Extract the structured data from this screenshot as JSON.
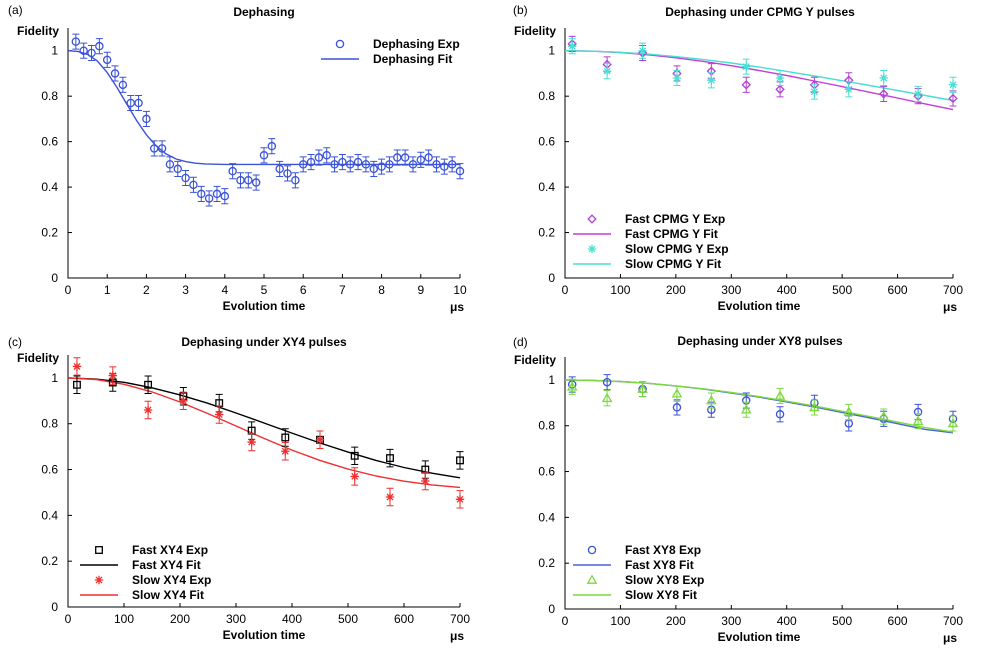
{
  "chart_data": [
    {
      "type": "scatter",
      "panel_label": "(a)",
      "title": "Dephasing",
      "xlabel": "Evolution time",
      "xunit": "μs",
      "ylabel": "Fidelity",
      "xlim": [
        0,
        10
      ],
      "ylim": [
        0,
        1.1
      ],
      "xticks": [
        0,
        1,
        2,
        3,
        4,
        5,
        6,
        7,
        8,
        9,
        10
      ],
      "yticks": [
        0,
        0.2,
        0.4,
        0.6,
        0.8,
        1
      ],
      "legend_position": "top-right",
      "series": [
        {
          "name": "Dephasing Exp",
          "kind": "exp",
          "marker": "circle",
          "color": "#3a52d6",
          "x": [
            0.2,
            0.4,
            0.6,
            0.8,
            1.0,
            1.2,
            1.4,
            1.6,
            1.8,
            2.0,
            2.2,
            2.4,
            2.6,
            2.8,
            3.0,
            3.2,
            3.4,
            3.6,
            3.8,
            4.0,
            4.2,
            4.4,
            4.6,
            4.8,
            5.0,
            5.2,
            5.4,
            5.6,
            5.8,
            6.0,
            6.2,
            6.4,
            6.6,
            6.8,
            7.0,
            7.2,
            7.4,
            7.6,
            7.8,
            8.0,
            8.2,
            8.4,
            8.6,
            8.8,
            9.0,
            9.2,
            9.4,
            9.6,
            9.8,
            10.0
          ],
          "y": [
            1.04,
            1.0,
            0.99,
            1.02,
            0.96,
            0.9,
            0.85,
            0.77,
            0.77,
            0.7,
            0.57,
            0.57,
            0.5,
            0.48,
            0.44,
            0.41,
            0.37,
            0.35,
            0.37,
            0.36,
            0.47,
            0.43,
            0.43,
            0.42,
            0.54,
            0.58,
            0.48,
            0.46,
            0.43,
            0.5,
            0.51,
            0.53,
            0.54,
            0.5,
            0.51,
            0.5,
            0.51,
            0.5,
            0.48,
            0.49,
            0.5,
            0.53,
            0.53,
            0.5,
            0.52,
            0.53,
            0.5,
            0.49,
            0.5,
            0.47
          ],
          "error": 0.02
        },
        {
          "name": "Dephasing Fit",
          "kind": "fit",
          "color": "#3a52d6",
          "x": [
            0,
            0.25,
            0.5,
            0.75,
            1,
            1.25,
            1.5,
            1.75,
            2,
            2.25,
            2.5,
            2.75,
            3,
            3.25,
            3.5,
            4,
            4.5,
            5,
            6,
            7,
            8,
            9,
            10
          ],
          "y": [
            1.0,
            0.997,
            0.984,
            0.955,
            0.904,
            0.838,
            0.765,
            0.693,
            0.63,
            0.581,
            0.546,
            0.524,
            0.512,
            0.505,
            0.502,
            0.5,
            0.5,
            0.5,
            0.5,
            0.5,
            0.5,
            0.5,
            0.5
          ]
        }
      ]
    },
    {
      "type": "scatter",
      "panel_label": "(b)",
      "title": "Dephasing under CPMG Y pulses",
      "xlabel": "Evolution time",
      "xunit": "μs",
      "ylabel": "Fidelity",
      "xlim": [
        0,
        700
      ],
      "ylim": [
        0,
        1.1
      ],
      "xticks": [
        0,
        100,
        200,
        300,
        400,
        500,
        600,
        700
      ],
      "yticks": [
        0,
        0.2,
        0.4,
        0.6,
        0.8,
        1
      ],
      "legend_position": "bottom-left",
      "series": [
        {
          "name": "Fast CPMG Y Exp",
          "kind": "exp",
          "marker": "diamond",
          "color": "#b13fd6",
          "x": [
            13,
            76,
            140,
            202,
            264,
            327,
            388,
            450,
            512,
            575,
            637,
            700
          ],
          "y": [
            1.03,
            0.94,
            0.99,
            0.9,
            0.91,
            0.85,
            0.83,
            0.85,
            0.87,
            0.81,
            0.8,
            0.79
          ],
          "error": 0.02
        },
        {
          "name": "Fast CPMG Y Fit",
          "kind": "fit",
          "color": "#c33fd9",
          "x": [
            0,
            50,
            100,
            150,
            200,
            250,
            300,
            350,
            400,
            450,
            500,
            550,
            600,
            650,
            700
          ],
          "y": [
            1.0,
            0.998,
            0.992,
            0.982,
            0.969,
            0.953,
            0.934,
            0.913,
            0.891,
            0.867,
            0.842,
            0.817,
            0.792,
            0.766,
            0.741
          ]
        },
        {
          "name": "Slow CPMG Y Exp",
          "kind": "exp",
          "marker": "star",
          "color": "#49dfd2",
          "x": [
            13,
            76,
            140,
            202,
            264,
            327,
            388,
            450,
            512,
            575,
            637,
            700
          ],
          "y": [
            1.02,
            0.91,
            1.0,
            0.88,
            0.87,
            0.93,
            0.88,
            0.82,
            0.83,
            0.88,
            0.81,
            0.85
          ],
          "error": 0.02
        },
        {
          "name": "Slow CPMG Y Fit",
          "kind": "fit",
          "color": "#49dfd2",
          "x": [
            0,
            50,
            100,
            150,
            200,
            250,
            300,
            350,
            400,
            450,
            500,
            550,
            600,
            650,
            700
          ],
          "y": [
            1.0,
            0.998,
            0.993,
            0.985,
            0.974,
            0.961,
            0.946,
            0.928,
            0.909,
            0.889,
            0.868,
            0.847,
            0.825,
            0.803,
            0.781
          ]
        }
      ]
    },
    {
      "type": "scatter",
      "panel_label": "(c)",
      "title": "Dephasing under XY4 pulses",
      "xlabel": "Evolution time",
      "xunit": "μs",
      "ylabel": "Fidelity",
      "xlim": [
        0,
        700
      ],
      "ylim": [
        0,
        1.1
      ],
      "xticks": [
        0,
        100,
        200,
        300,
        400,
        500,
        600,
        700
      ],
      "yticks": [
        0,
        0.2,
        0.4,
        0.6,
        0.8,
        1
      ],
      "legend_position": "bottom-left",
      "series": [
        {
          "name": "Fast XY4 Exp",
          "kind": "exp",
          "marker": "square",
          "color": "#000000",
          "x": [
            16,
            80,
            143,
            206,
            270,
            328,
            388,
            450,
            512,
            575,
            638,
            700
          ],
          "y": [
            0.97,
            0.98,
            0.97,
            0.92,
            0.89,
            0.77,
            0.74,
            0.73,
            0.66,
            0.65,
            0.6,
            0.64
          ],
          "error": 0.025
        },
        {
          "name": "Fast XY4 Fit",
          "kind": "fit",
          "color": "#000000",
          "x": [
            0,
            50,
            100,
            150,
            200,
            250,
            300,
            350,
            400,
            450,
            500,
            550,
            600,
            650,
            700
          ],
          "y": [
            1.0,
            0.995,
            0.981,
            0.957,
            0.926,
            0.889,
            0.847,
            0.803,
            0.759,
            0.716,
            0.676,
            0.64,
            0.609,
            0.584,
            0.564
          ]
        },
        {
          "name": "Slow XY4 Exp",
          "kind": "exp",
          "marker": "asterisk",
          "color": "#ee2f2f",
          "x": [
            16,
            80,
            143,
            206,
            270,
            328,
            388,
            450,
            512,
            575,
            638,
            700
          ],
          "y": [
            1.05,
            1.01,
            0.86,
            0.9,
            0.84,
            0.72,
            0.68,
            0.73,
            0.57,
            0.48,
            0.55,
            0.47
          ],
          "error": 0.025
        },
        {
          "name": "Slow XY4 Fit",
          "kind": "fit",
          "color": "#ee2f2f",
          "x": [
            0,
            50,
            100,
            150,
            200,
            250,
            300,
            350,
            400,
            450,
            500,
            550,
            600,
            650,
            700
          ],
          "y": [
            1.0,
            0.993,
            0.972,
            0.939,
            0.895,
            0.844,
            0.79,
            0.736,
            0.685,
            0.64,
            0.602,
            0.572,
            0.549,
            0.533,
            0.522
          ]
        }
      ]
    },
    {
      "type": "scatter",
      "panel_label": "(d)",
      "title": "Dephasing under XY8 pulses",
      "xlabel": "Evolution time",
      "xunit": "μs",
      "ylabel": "Fidelity",
      "xlim": [
        0,
        700
      ],
      "ylim": [
        0,
        1.1
      ],
      "xticks": [
        0,
        100,
        200,
        300,
        400,
        500,
        600,
        700
      ],
      "yticks": [
        0,
        0.2,
        0.4,
        0.6,
        0.8,
        1
      ],
      "legend_position": "bottom-left",
      "series": [
        {
          "name": "Fast XY8 Exp",
          "kind": "exp",
          "marker": "circle",
          "color": "#3a52d6",
          "x": [
            13,
            76,
            140,
            202,
            264,
            327,
            388,
            450,
            512,
            575,
            637,
            700
          ],
          "y": [
            0.98,
            0.99,
            0.96,
            0.88,
            0.87,
            0.91,
            0.85,
            0.9,
            0.81,
            0.83,
            0.86,
            0.83
          ],
          "error": 0.02
        },
        {
          "name": "Fast XY8 Fit",
          "kind": "fit",
          "color": "#4a62de",
          "x": [
            0,
            50,
            100,
            150,
            200,
            250,
            300,
            350,
            400,
            450,
            500,
            550,
            600,
            650,
            700
          ],
          "y": [
            1.0,
            0.998,
            0.993,
            0.985,
            0.974,
            0.96,
            0.943,
            0.925,
            0.904,
            0.882,
            0.858,
            0.834,
            0.809,
            0.784,
            0.769
          ]
        },
        {
          "name": "Slow XY8 Exp",
          "kind": "exp",
          "marker": "triangle",
          "color": "#7bd93d",
          "x": [
            13,
            76,
            140,
            202,
            264,
            327,
            388,
            450,
            512,
            575,
            637,
            700
          ],
          "y": [
            0.97,
            0.92,
            0.96,
            0.94,
            0.91,
            0.87,
            0.93,
            0.88,
            0.86,
            0.84,
            0.82,
            0.81
          ],
          "error": 0.02
        },
        {
          "name": "Slow XY8 Fit",
          "kind": "fit",
          "color": "#7bd93d",
          "x": [
            0,
            50,
            100,
            150,
            200,
            250,
            300,
            350,
            400,
            450,
            500,
            550,
            600,
            650,
            700
          ],
          "y": [
            1.0,
            0.998,
            0.993,
            0.985,
            0.974,
            0.961,
            0.945,
            0.927,
            0.907,
            0.886,
            0.863,
            0.84,
            0.816,
            0.792,
            0.772
          ]
        }
      ]
    }
  ]
}
